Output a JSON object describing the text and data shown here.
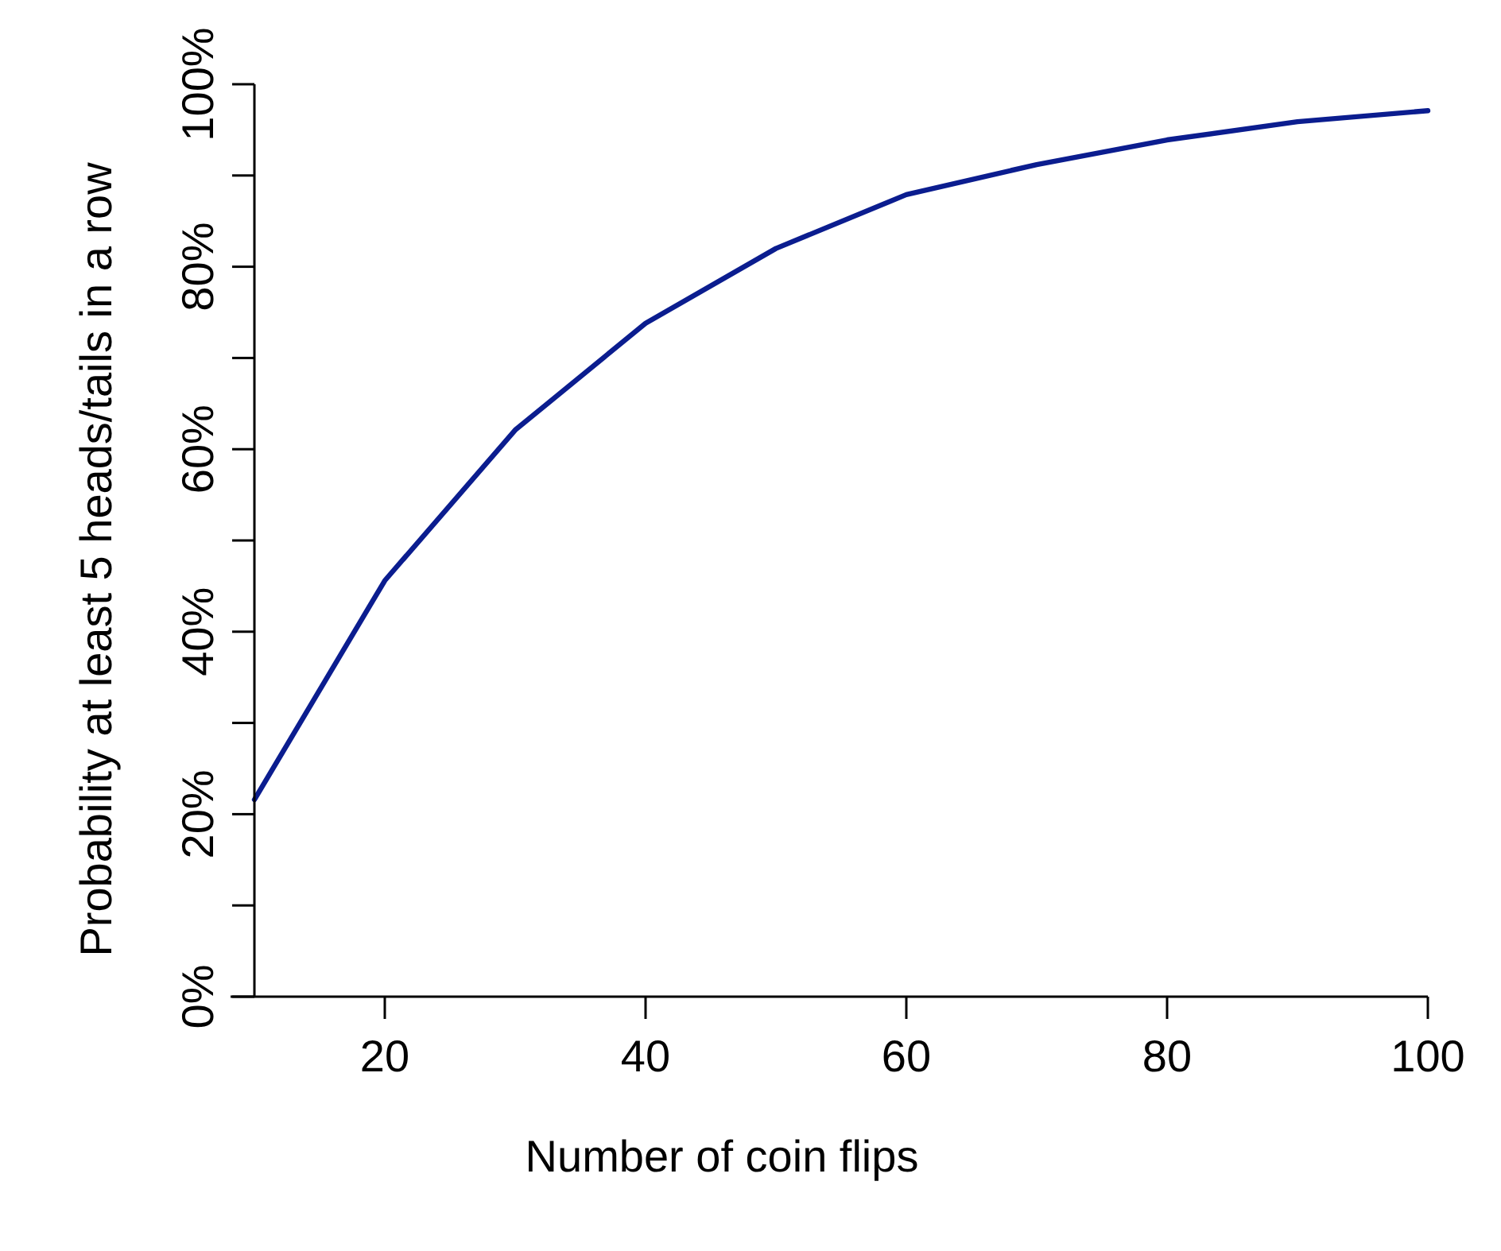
{
  "chart_data": {
    "type": "line",
    "xlabel": "Number of coin flips",
    "ylabel": "Probability at least 5 heads/tails in a row",
    "x": [
      10,
      20,
      30,
      40,
      50,
      60,
      70,
      80,
      90,
      100
    ],
    "series": [
      {
        "color": "#0b1d8f",
        "values": [
          21.6,
          45.6,
          62.1,
          73.8,
          82.0,
          87.9,
          91.2,
          93.9,
          95.9,
          97.1
        ]
      }
    ],
    "xlim": [
      10,
      100
    ],
    "xticks": [
      20,
      40,
      60,
      80,
      100
    ],
    "ylim": [
      0,
      100
    ],
    "yticks": [
      {
        "value": 0,
        "label": "0%"
      },
      {
        "value": 10,
        "label": null
      },
      {
        "value": 20,
        "label": "20%"
      },
      {
        "value": 30,
        "label": null
      },
      {
        "value": 40,
        "label": "40%"
      },
      {
        "value": 50,
        "label": null
      },
      {
        "value": 60,
        "label": "60%"
      },
      {
        "value": 70,
        "label": null
      },
      {
        "value": 80,
        "label": "80%"
      },
      {
        "value": 90,
        "label": null
      },
      {
        "value": 100,
        "label": "100%"
      }
    ],
    "grid": false,
    "marker": "none",
    "line_style": "solid"
  }
}
